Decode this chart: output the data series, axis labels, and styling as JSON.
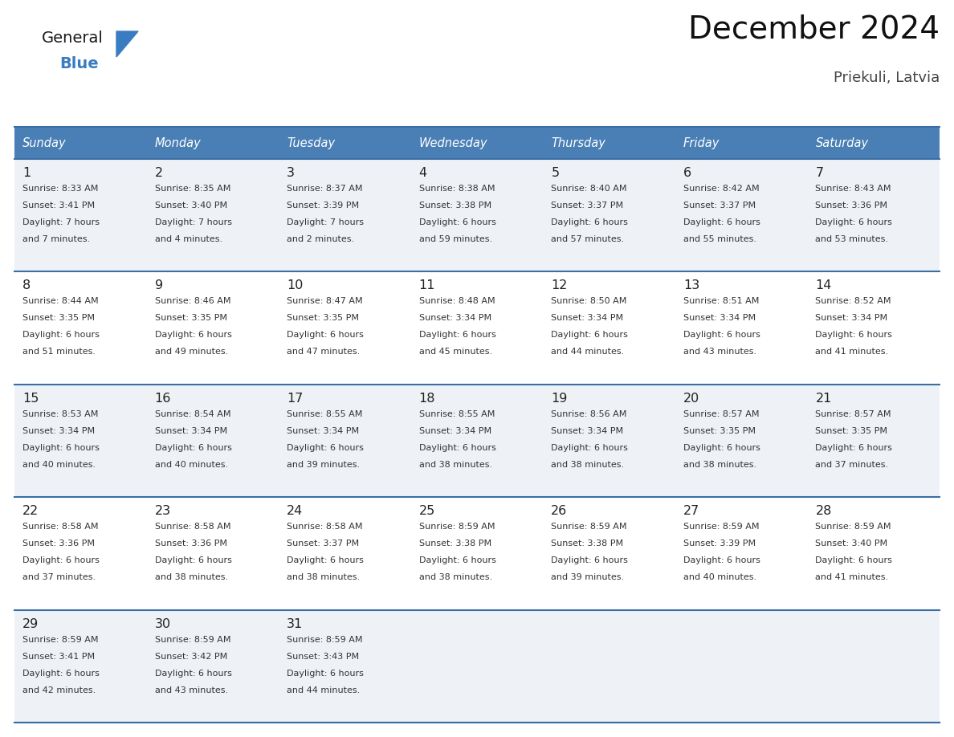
{
  "title": "December 2024",
  "subtitle": "Priekuli, Latvia",
  "days_of_week": [
    "Sunday",
    "Monday",
    "Tuesday",
    "Wednesday",
    "Thursday",
    "Friday",
    "Saturday"
  ],
  "header_bg": "#4a7fb5",
  "header_text_color": "#ffffff",
  "cell_bg_odd": "#eef2f7",
  "cell_bg_even": "#ffffff",
  "grid_line_color": "#3a6ea5",
  "day_num_color": "#222222",
  "text_color": "#333333",
  "title_color": "#111111",
  "subtitle_color": "#444444",
  "logo_general_color": "#1a1a1a",
  "logo_blue_color": "#3a7cc1",
  "weeks": [
    [
      {
        "day": "1",
        "sunrise": "8:33 AM",
        "sunset": "3:41 PM",
        "daylight": "7 hours\nand 7 minutes."
      },
      {
        "day": "2",
        "sunrise": "8:35 AM",
        "sunset": "3:40 PM",
        "daylight": "7 hours\nand 4 minutes."
      },
      {
        "day": "3",
        "sunrise": "8:37 AM",
        "sunset": "3:39 PM",
        "daylight": "7 hours\nand 2 minutes."
      },
      {
        "day": "4",
        "sunrise": "8:38 AM",
        "sunset": "3:38 PM",
        "daylight": "6 hours\nand 59 minutes."
      },
      {
        "day": "5",
        "sunrise": "8:40 AM",
        "sunset": "3:37 PM",
        "daylight": "6 hours\nand 57 minutes."
      },
      {
        "day": "6",
        "sunrise": "8:42 AM",
        "sunset": "3:37 PM",
        "daylight": "6 hours\nand 55 minutes."
      },
      {
        "day": "7",
        "sunrise": "8:43 AM",
        "sunset": "3:36 PM",
        "daylight": "6 hours\nand 53 minutes."
      }
    ],
    [
      {
        "day": "8",
        "sunrise": "8:44 AM",
        "sunset": "3:35 PM",
        "daylight": "6 hours\nand 51 minutes."
      },
      {
        "day": "9",
        "sunrise": "8:46 AM",
        "sunset": "3:35 PM",
        "daylight": "6 hours\nand 49 minutes."
      },
      {
        "day": "10",
        "sunrise": "8:47 AM",
        "sunset": "3:35 PM",
        "daylight": "6 hours\nand 47 minutes."
      },
      {
        "day": "11",
        "sunrise": "8:48 AM",
        "sunset": "3:34 PM",
        "daylight": "6 hours\nand 45 minutes."
      },
      {
        "day": "12",
        "sunrise": "8:50 AM",
        "sunset": "3:34 PM",
        "daylight": "6 hours\nand 44 minutes."
      },
      {
        "day": "13",
        "sunrise": "8:51 AM",
        "sunset": "3:34 PM",
        "daylight": "6 hours\nand 43 minutes."
      },
      {
        "day": "14",
        "sunrise": "8:52 AM",
        "sunset": "3:34 PM",
        "daylight": "6 hours\nand 41 minutes."
      }
    ],
    [
      {
        "day": "15",
        "sunrise": "8:53 AM",
        "sunset": "3:34 PM",
        "daylight": "6 hours\nand 40 minutes."
      },
      {
        "day": "16",
        "sunrise": "8:54 AM",
        "sunset": "3:34 PM",
        "daylight": "6 hours\nand 40 minutes."
      },
      {
        "day": "17",
        "sunrise": "8:55 AM",
        "sunset": "3:34 PM",
        "daylight": "6 hours\nand 39 minutes."
      },
      {
        "day": "18",
        "sunrise": "8:55 AM",
        "sunset": "3:34 PM",
        "daylight": "6 hours\nand 38 minutes."
      },
      {
        "day": "19",
        "sunrise": "8:56 AM",
        "sunset": "3:34 PM",
        "daylight": "6 hours\nand 38 minutes."
      },
      {
        "day": "20",
        "sunrise": "8:57 AM",
        "sunset": "3:35 PM",
        "daylight": "6 hours\nand 38 minutes."
      },
      {
        "day": "21",
        "sunrise": "8:57 AM",
        "sunset": "3:35 PM",
        "daylight": "6 hours\nand 37 minutes."
      }
    ],
    [
      {
        "day": "22",
        "sunrise": "8:58 AM",
        "sunset": "3:36 PM",
        "daylight": "6 hours\nand 37 minutes."
      },
      {
        "day": "23",
        "sunrise": "8:58 AM",
        "sunset": "3:36 PM",
        "daylight": "6 hours\nand 38 minutes."
      },
      {
        "day": "24",
        "sunrise": "8:58 AM",
        "sunset": "3:37 PM",
        "daylight": "6 hours\nand 38 minutes."
      },
      {
        "day": "25",
        "sunrise": "8:59 AM",
        "sunset": "3:38 PM",
        "daylight": "6 hours\nand 38 minutes."
      },
      {
        "day": "26",
        "sunrise": "8:59 AM",
        "sunset": "3:38 PM",
        "daylight": "6 hours\nand 39 minutes."
      },
      {
        "day": "27",
        "sunrise": "8:59 AM",
        "sunset": "3:39 PM",
        "daylight": "6 hours\nand 40 minutes."
      },
      {
        "day": "28",
        "sunrise": "8:59 AM",
        "sunset": "3:40 PM",
        "daylight": "6 hours\nand 41 minutes."
      }
    ],
    [
      {
        "day": "29",
        "sunrise": "8:59 AM",
        "sunset": "3:41 PM",
        "daylight": "6 hours\nand 42 minutes."
      },
      {
        "day": "30",
        "sunrise": "8:59 AM",
        "sunset": "3:42 PM",
        "daylight": "6 hours\nand 43 minutes."
      },
      {
        "day": "31",
        "sunrise": "8:59 AM",
        "sunset": "3:43 PM",
        "daylight": "6 hours\nand 44 minutes."
      },
      null,
      null,
      null,
      null
    ]
  ]
}
